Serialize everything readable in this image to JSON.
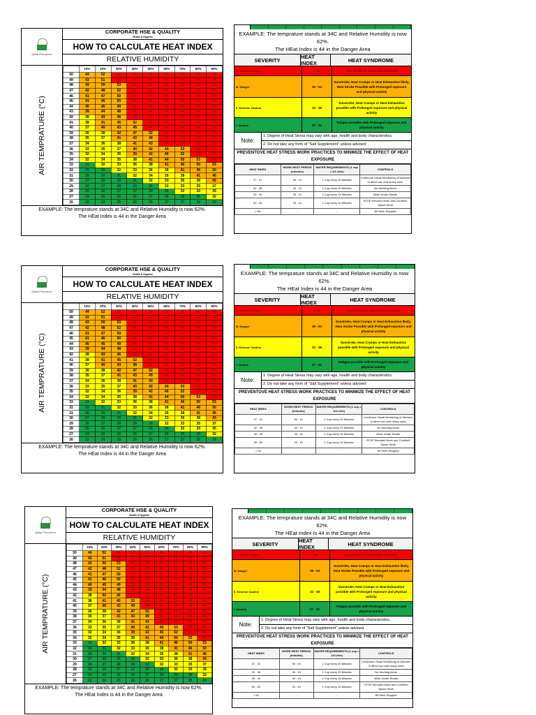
{
  "sheet": {
    "corp_title": "CORPORATE HSE & QUALITY",
    "corp_subtitle": "Health & Hygiene",
    "logo_text": "Qatar Petroleum",
    "main_title": "HOW TO CALCULATE HEAT INDEX",
    "rh_title": "RELATIVE HUMIDITY",
    "y_label": "AIR TEMPRATURE (°C)",
    "humidity_cols": [
      "10%",
      "20%",
      "30%",
      "40%",
      "50%",
      "60%",
      "70%",
      "80%",
      "90%"
    ],
    "example_line1": "EXAMPLE: The temprature stands at 34C and Relative Humidity is now 62%.",
    "example_line2": "The HEat Index is 44 in the Danger Area"
  },
  "chart_data": {
    "type": "heatmap",
    "title": "HOW TO CALCULATE HEAT INDEX",
    "xlabel": "RELATIVE HUMIDITY",
    "ylabel": "AIR TEMPRATURE (°C)",
    "x": [
      "10%",
      "20%",
      "30%",
      "40%",
      "50%",
      "60%",
      "70%",
      "80%",
      "90%"
    ],
    "y": [
      50,
      49,
      48,
      47,
      46,
      45,
      44,
      43,
      42,
      41,
      40,
      39,
      38,
      37,
      36,
      35,
      34,
      33,
      32,
      31,
      30,
      29,
      28,
      27,
      26
    ],
    "values": [
      [
        44,
        52,
        54,
        54,
        54,
        54,
        54,
        54,
        54
      ],
      [
        43,
        51,
        54,
        54,
        54,
        54,
        54,
        54,
        54
      ],
      [
        43,
        50,
        53,
        54,
        54,
        54,
        54,
        54,
        54
      ],
      [
        42,
        48,
        52,
        54,
        54,
        54,
        54,
        54,
        54
      ],
      [
        41,
        47,
        50,
        54,
        54,
        54,
        54,
        54,
        54
      ],
      [
        41,
        46,
        50,
        54,
        54,
        54,
        54,
        54,
        54
      ],
      [
        40,
        45,
        49,
        54,
        54,
        54,
        54,
        54,
        54
      ],
      [
        39,
        44,
        48,
        54,
        54,
        54,
        54,
        54,
        54
      ],
      [
        38,
        43,
        46,
        54,
        54,
        54,
        54,
        54,
        54
      ],
      [
        38,
        41,
        45,
        52,
        54,
        54,
        54,
        54,
        54
      ],
      [
        37,
        40,
        43,
        49,
        54,
        54,
        54,
        54,
        54
      ],
      [
        36,
        38,
        42,
        47,
        52,
        54,
        54,
        54,
        54
      ],
      [
        35,
        37,
        41,
        43,
        49,
        54,
        54,
        54,
        54
      ],
      [
        34,
        36,
        38,
        41,
        43,
        54,
        54,
        54,
        54
      ],
      [
        33,
        35,
        37,
        40,
        42,
        49,
        53,
        54,
        54
      ],
      [
        32,
        34,
        36,
        39,
        42,
        46,
        52,
        54,
        54
      ],
      [
        32,
        34,
        35,
        38,
        41,
        44,
        50,
        53,
        54
      ],
      [
        31,
        32,
        33,
        36,
        38,
        41,
        46,
        50,
        53
      ],
      [
        29,
        31,
        32,
        33,
        36,
        38,
        41,
        46,
        50
      ],
      [
        28,
        30,
        31,
        32,
        34,
        35,
        38,
        41,
        46
      ],
      [
        27,
        29,
        29,
        31,
        32,
        33,
        36,
        38,
        43
      ],
      [
        26,
        27,
        28,
        29,
        30,
        32,
        33,
        35,
        37
      ],
      [
        25,
        26,
        27,
        27,
        29,
        30,
        32,
        33,
        35
      ],
      [
        24,
        25,
        26,
        26,
        27,
        28,
        29,
        30,
        32
      ],
      [
        22,
        24,
        25,
        26,
        26,
        27,
        27,
        28,
        29
      ]
    ],
    "color_bands": [
      {
        "range": "27-31",
        "label": "I. Caution",
        "color": "#16a34a"
      },
      {
        "range": "32-38",
        "label": "II. Extreme Caution",
        "color": "#ffff00"
      },
      {
        "range": "39-53",
        "label": "III. Danger",
        "color": "#ffb000"
      },
      {
        "range": ">54",
        "label": "IV. Extreme Danger",
        "color": "#ff0000"
      }
    ]
  },
  "severity": {
    "example_line1": "EXAMPLE: The temprature stands at 34C and Relative Humidity is now 62%.",
    "example_line2": "The HEat Index is 44 in the Danger Area",
    "headers": {
      "severity": "SEVERITY",
      "heat_index": "HEAT INDEX",
      "syndrome": "HEAT SYNDROME"
    },
    "rows": [
      {
        "severity": "IV. Extreme Danger",
        "index": "> 54",
        "syndrome": "Heat Stroke or Sunstroke imminent"
      },
      {
        "severity": "III. Danger",
        "index": "39 - 53",
        "syndrome": "Sunstroke, Heat Cramps or Heat Exhaustion likely, Heat Stroke Possible with Prolonged exposure and physical activity"
      },
      {
        "severity": "II. Extreme Caution",
        "index": "32 - 38",
        "syndrome": "Sunstroke, Heat Cramps or Heat Exhaustion possible with Prolonged exposure and physical activity"
      },
      {
        "severity": "I. Caution",
        "index": "27 - 31",
        "syndrome": "Fatigue possible with Prolonged exposure and physical activity"
      }
    ],
    "note_label": "Note:",
    "notes": [
      "1. Degree of Heat Stress may vary with age, health and body characterstics.",
      "2. Do not take any form of \"Salt Supplement\" unless advised."
    ],
    "preventive_title": "PREVENTOVE HEAT STRESS WORK PRACTICES TO MINIMIZE THE EFFECT OF HEAT EXPOSURE",
    "controls_headers": {
      "heat_index": "HEAT INDEX",
      "work_rest": "WORK:REST PERIOD (minutes)",
      "water": "WATER REQUIREMENTS (1 cup = 1/4 Litre)",
      "controls": "CONTROLS"
    },
    "controls_rows": [
      {
        "index": "27 - 31",
        "work_rest": "50 : 10",
        "water": "1 Cup every 20 Minutes",
        "controls": "Continous Visual Monitoring of Workers in direct sun and heavy work"
      },
      {
        "index": "32 - 38",
        "work_rest": "40 : 10",
        "water": "1 Cup every 20 Minutes",
        "controls": "No Working Alone"
      },
      {
        "index": "39 - 49",
        "work_rest": "30 : 10",
        "water": "1 Cup every 15 Minutes",
        "controls": "Work Under Shade"
      },
      {
        "index": "50 - 53",
        "work_rest": "20 : 10",
        "water": "1 Cup every 10 Minutes",
        "controls": "STOP Elevated Work and Confined Space Work"
      },
      {
        "index": "> 54",
        "work_rest": "-",
        "water": "-",
        "controls": "All Work Stopped"
      }
    ]
  }
}
